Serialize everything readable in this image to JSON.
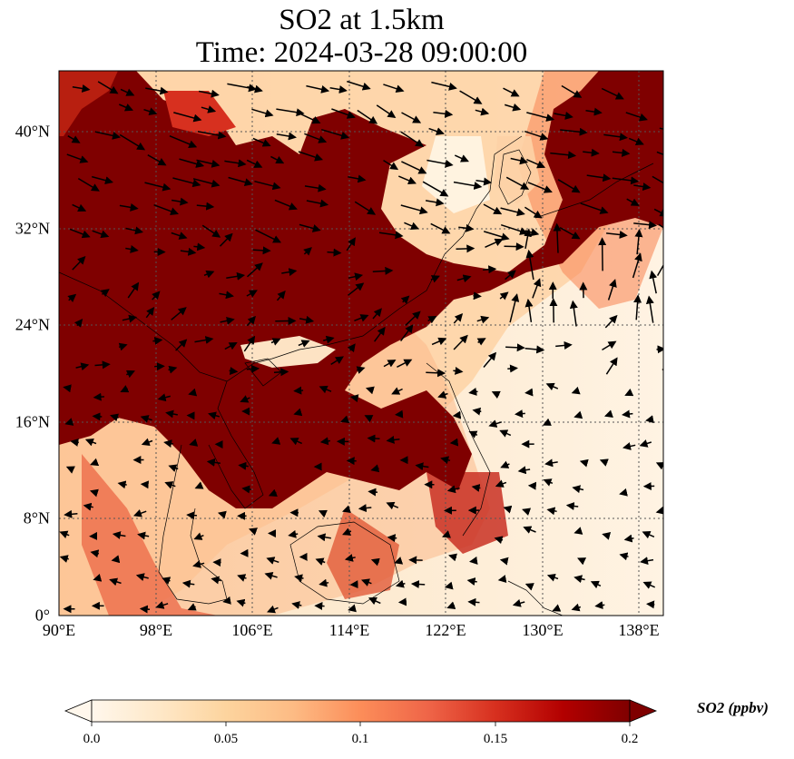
{
  "title": {
    "line1": "SO2 at 1.5km",
    "line2": "Time: 2024-03-28 09:00:00"
  },
  "map": {
    "projection": "PlateCarree",
    "lon_range": [
      90,
      140
    ],
    "lat_range": [
      0,
      45
    ],
    "x_ticks": [
      "90°E",
      "98°E",
      "106°E",
      "114°E",
      "122°E",
      "130°E",
      "138°E"
    ],
    "x_tick_values": [
      90,
      98,
      106,
      114,
      122,
      130,
      138
    ],
    "y_ticks": [
      "0°",
      "8°N",
      "16°N",
      "24°N",
      "32°N",
      "40°N"
    ],
    "y_tick_values": [
      0,
      8,
      16,
      24,
      32,
      40
    ],
    "gridlines": "dotted",
    "high_color": "#7f0000",
    "low_color": "#fff7ec"
  },
  "colorbar": {
    "label": "SO2 (ppbv)",
    "ticks": [
      "0.0",
      "0.05",
      "0.1",
      "0.15",
      "0.2"
    ],
    "range": [
      0.0,
      0.2
    ],
    "colormap": "OrRd",
    "extend": "both",
    "colors": [
      "#fff7ec",
      "#fee8c8",
      "#fdd49e",
      "#fdbb84",
      "#fc8d59",
      "#ef6548",
      "#d7301f",
      "#b30000",
      "#7f0000"
    ]
  }
}
